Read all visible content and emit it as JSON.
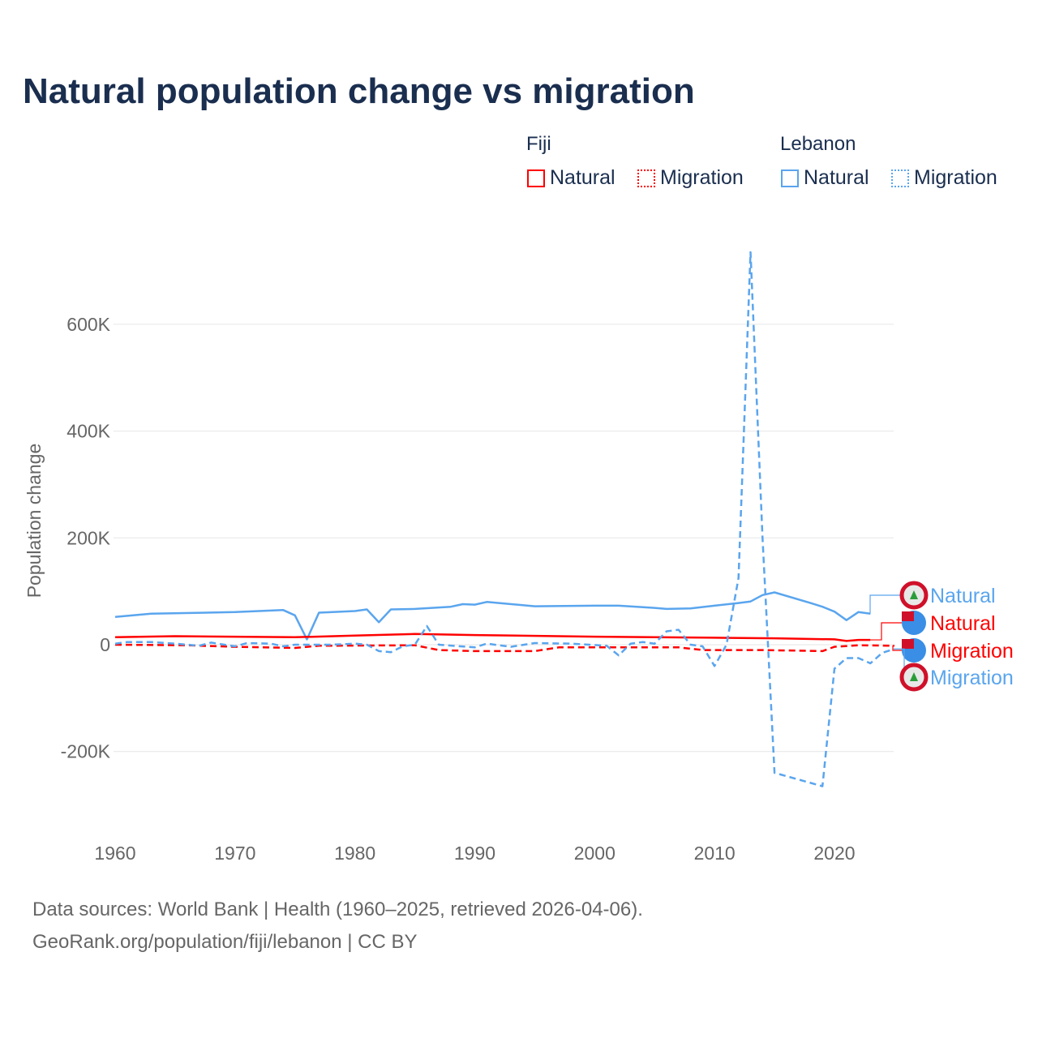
{
  "title": "Natural population change vs migration",
  "legend": {
    "groups": [
      {
        "name": "Fiji",
        "items": [
          "Natural",
          "Migration"
        ]
      },
      {
        "name": "Lebanon",
        "items": [
          "Natural",
          "Migration"
        ]
      }
    ]
  },
  "colors": {
    "fiji": "#ff0000",
    "lebanon": "#5aa5ee"
  },
  "footer": {
    "line1": "Data sources: World Bank | Health (1960–2025, retrieved 2026-04-06).",
    "line2": "GeoRank.org/population/fiji/lebanon | CC BY"
  },
  "chart_data": {
    "type": "line",
    "ylabel": "Population change",
    "xlim": [
      1960,
      2025
    ],
    "ylim": [
      -300000,
      750000
    ],
    "xticks": [
      1960,
      1970,
      1980,
      1990,
      2000,
      2010,
      2020
    ],
    "xtick_labels": [
      "1960",
      "1970",
      "1980",
      "1990",
      "2000",
      "2010",
      "2020"
    ],
    "yticks": [
      -200000,
      0,
      200000,
      400000,
      600000
    ],
    "ytick_labels": [
      "-200K",
      "0",
      "200K",
      "400K",
      "600K"
    ],
    "series": [
      {
        "name": "Lebanon Natural",
        "country": "Lebanon",
        "end_label": "Natural",
        "color": "#5aa5ee",
        "dash": false,
        "points": [
          [
            1960,
            52000
          ],
          [
            1963,
            58000
          ],
          [
            1970,
            61000
          ],
          [
            1974,
            65000
          ],
          [
            1975,
            55000
          ],
          [
            1976,
            10000
          ],
          [
            1977,
            60000
          ],
          [
            1980,
            63000
          ],
          [
            1981,
            66000
          ],
          [
            1982,
            42000
          ],
          [
            1983,
            66000
          ],
          [
            1985,
            67000
          ],
          [
            1988,
            71000
          ],
          [
            1989,
            76000
          ],
          [
            1990,
            75000
          ],
          [
            1991,
            80000
          ],
          [
            1995,
            72000
          ],
          [
            2000,
            73000
          ],
          [
            2002,
            73000
          ],
          [
            2005,
            69000
          ],
          [
            2006,
            67000
          ],
          [
            2008,
            68000
          ],
          [
            2010,
            73000
          ],
          [
            2012,
            78000
          ],
          [
            2013,
            81000
          ],
          [
            2014,
            93000
          ],
          [
            2015,
            98000
          ],
          [
            2018,
            78000
          ],
          [
            2019,
            71000
          ],
          [
            2020,
            62000
          ],
          [
            2021,
            46000
          ],
          [
            2022,
            61000
          ],
          [
            2023,
            58000
          ]
        ]
      },
      {
        "name": "Fiji Natural",
        "country": "Fiji",
        "end_label": "Natural",
        "color": "#ff0000",
        "dash": false,
        "points": [
          [
            1960,
            14000
          ],
          [
            1965,
            16000
          ],
          [
            1975,
            14000
          ],
          [
            1980,
            17000
          ],
          [
            1985,
            20000
          ],
          [
            1990,
            18000
          ],
          [
            2000,
            15000
          ],
          [
            2010,
            13000
          ],
          [
            2015,
            12000
          ],
          [
            2020,
            10000
          ],
          [
            2021,
            7000
          ],
          [
            2022,
            9000
          ],
          [
            2023,
            9000
          ]
        ]
      },
      {
        "name": "Fiji Migration",
        "country": "Fiji",
        "end_label": "Migration",
        "color": "#ff0000",
        "dash": true,
        "points": [
          [
            1960,
            0
          ],
          [
            1966,
            -1000
          ],
          [
            1970,
            -4000
          ],
          [
            1975,
            -6000
          ],
          [
            1977,
            -2000
          ],
          [
            1985,
            -1000
          ],
          [
            1987,
            -10000
          ],
          [
            1990,
            -12000
          ],
          [
            1995,
            -12000
          ],
          [
            1997,
            -5000
          ],
          [
            2007,
            -5000
          ],
          [
            2009,
            -10000
          ],
          [
            2014,
            -10000
          ],
          [
            2019,
            -12000
          ],
          [
            2020,
            -4000
          ],
          [
            2022,
            -1000
          ],
          [
            2025,
            -2000
          ]
        ]
      },
      {
        "name": "Lebanon Migration",
        "country": "Lebanon",
        "end_label": "Migration",
        "color": "#5aa5ee",
        "dash": true,
        "points": [
          [
            1960,
            2000
          ],
          [
            1961,
            5000
          ],
          [
            1963,
            5000
          ],
          [
            1965,
            2000
          ],
          [
            1967,
            -2000
          ],
          [
            1968,
            4000
          ],
          [
            1970,
            -3000
          ],
          [
            1971,
            3000
          ],
          [
            1973,
            2000
          ],
          [
            1974,
            -3000
          ],
          [
            1975,
            0
          ],
          [
            1978,
            0
          ],
          [
            1980,
            2000
          ],
          [
            1981,
            0
          ],
          [
            1982,
            -12000
          ],
          [
            1983,
            -14000
          ],
          [
            1984,
            -3000
          ],
          [
            1985,
            0
          ],
          [
            1986,
            35000
          ],
          [
            1987,
            0
          ],
          [
            1990,
            -5000
          ],
          [
            1991,
            2000
          ],
          [
            1993,
            -4000
          ],
          [
            1995,
            3000
          ],
          [
            1998,
            2000
          ],
          [
            2001,
            -2000
          ],
          [
            2002,
            -20000
          ],
          [
            2003,
            2000
          ],
          [
            2004,
            5000
          ],
          [
            2005,
            2000
          ],
          [
            2006,
            25000
          ],
          [
            2007,
            28000
          ],
          [
            2008,
            0
          ],
          [
            2009,
            -3000
          ],
          [
            2010,
            -40000
          ],
          [
            2011,
            0
          ],
          [
            2012,
            125000
          ],
          [
            2013,
            735000
          ],
          [
            2014,
            200000
          ],
          [
            2015,
            -240000
          ],
          [
            2019,
            -265000
          ],
          [
            2020,
            -45000
          ],
          [
            2021,
            -25000
          ],
          [
            2022,
            -25000
          ],
          [
            2023,
            -35000
          ],
          [
            2024,
            -15000
          ],
          [
            2025,
            -8000
          ]
        ]
      }
    ]
  }
}
